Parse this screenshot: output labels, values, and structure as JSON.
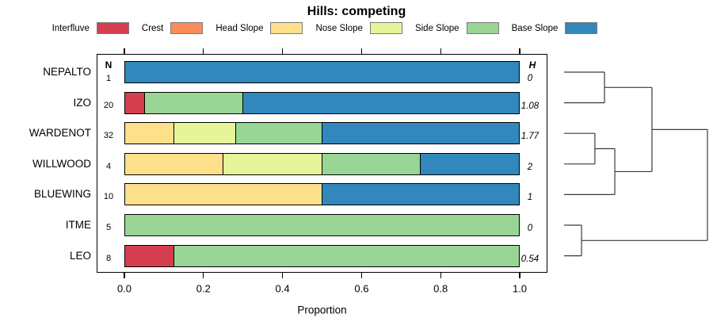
{
  "chart_data": {
    "type": "bar",
    "subtype": "horizontal-stacked-proportion-with-dendrogram",
    "title": "Hills: competing",
    "xlabel": "Proportion",
    "x_ticks": [
      "0.0",
      "0.2",
      "0.4",
      "0.6",
      "0.8",
      "1.0"
    ],
    "xlim": [
      0,
      1
    ],
    "grid": false,
    "legend_position": "top",
    "n_column_header": "N",
    "h_column_header": "H",
    "categories": [
      {
        "label": "Interfluve",
        "color": "#D53E4F"
      },
      {
        "label": "Crest",
        "color": "#FC8D59"
      },
      {
        "label": "Head Slope",
        "color": "#FEE08B"
      },
      {
        "label": "Nose Slope",
        "color": "#E6F598"
      },
      {
        "label": "Side Slope",
        "color": "#99D594"
      },
      {
        "label": "Base Slope",
        "color": "#3288BD"
      }
    ],
    "rows": [
      {
        "label": "NEPALTO",
        "n": "1",
        "h": "0",
        "segments": [
          {
            "category": "Base Slope",
            "proportion": 1.0
          }
        ]
      },
      {
        "label": "IZO",
        "n": "20",
        "h": "1.08",
        "segments": [
          {
            "category": "Interfluve",
            "proportion": 0.05
          },
          {
            "category": "Side Slope",
            "proportion": 0.25
          },
          {
            "category": "Base Slope",
            "proportion": 0.7
          }
        ]
      },
      {
        "label": "WARDENOT",
        "n": "32",
        "h": "1.77",
        "segments": [
          {
            "category": "Head Slope",
            "proportion": 0.125
          },
          {
            "category": "Nose Slope",
            "proportion": 0.15625
          },
          {
            "category": "Side Slope",
            "proportion": 0.21875
          },
          {
            "category": "Base Slope",
            "proportion": 0.5
          }
        ]
      },
      {
        "label": "WILLWOOD",
        "n": "4",
        "h": "2",
        "segments": [
          {
            "category": "Head Slope",
            "proportion": 0.25
          },
          {
            "category": "Nose Slope",
            "proportion": 0.25
          },
          {
            "category": "Side Slope",
            "proportion": 0.25
          },
          {
            "category": "Base Slope",
            "proportion": 0.25
          }
        ]
      },
      {
        "label": "BLUEWING",
        "n": "10",
        "h": "1",
        "segments": [
          {
            "category": "Head Slope",
            "proportion": 0.5
          },
          {
            "category": "Base Slope",
            "proportion": 0.5
          }
        ]
      },
      {
        "label": "ITME",
        "n": "5",
        "h": "0",
        "segments": [
          {
            "category": "Side Slope",
            "proportion": 1.0
          }
        ]
      },
      {
        "label": "LEO",
        "n": "8",
        "h": "0.54",
        "segments": [
          {
            "category": "Interfluve",
            "proportion": 0.125
          },
          {
            "category": "Side Slope",
            "proportion": 0.875
          }
        ]
      }
    ],
    "dendrogram": {
      "structure": "(((NEPALTO,IZO),((WARDENOT,WILLWOOD),BLUEWING)),(ITME,LEO))",
      "line_color": "#3a3a3a",
      "segments": [
        [
          0,
          0,
          0.282,
          0
        ],
        [
          0,
          1,
          0.282,
          1
        ],
        [
          0.282,
          0,
          0.282,
          1
        ],
        [
          0.282,
          0.5,
          0.613,
          0.5
        ],
        [
          0,
          2,
          0.215,
          2
        ],
        [
          0,
          3,
          0.215,
          3
        ],
        [
          0.215,
          2,
          0.215,
          3
        ],
        [
          0.215,
          2.5,
          0.354,
          2.5
        ],
        [
          0,
          4,
          0.354,
          4
        ],
        [
          0.354,
          2.5,
          0.354,
          4
        ],
        [
          0.354,
          3.25,
          0.613,
          3.25
        ],
        [
          0.613,
          0.5,
          0.613,
          3.25
        ],
        [
          0.613,
          1.875,
          1,
          1.875
        ],
        [
          0,
          5,
          0.122,
          5
        ],
        [
          0,
          6,
          0.122,
          6
        ],
        [
          0.122,
          5,
          0.122,
          6
        ],
        [
          0.122,
          5.5,
          1,
          5.5
        ],
        [
          1,
          1.875,
          1,
          5.5
        ]
      ]
    },
    "colors": {
      "axis": "#000000",
      "plot_border": "#000000",
      "legend_swatch_border": "#7a7a7a",
      "background": "#ffffff"
    }
  }
}
